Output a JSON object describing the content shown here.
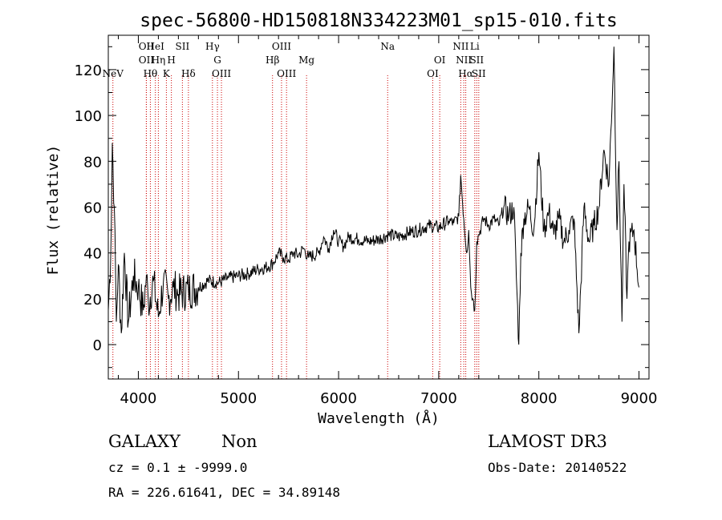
{
  "chart_data": {
    "type": "line",
    "title": "spec-56800-HD150818N334223M01_sp15-010.fits",
    "xlabel": "Wavelength (Å)",
    "ylabel": "Flux (relative)",
    "xlim": [
      3700,
      9100
    ],
    "ylim": [
      -15,
      135
    ],
    "x_ticks": [
      4000,
      5000,
      6000,
      7000,
      8000,
      9000
    ],
    "y_ticks": [
      0,
      20,
      40,
      60,
      80,
      100,
      120
    ],
    "grid": false,
    "series": [
      {
        "x": [
          3700,
          3725,
          3740,
          3760,
          3780,
          3800,
          3830,
          3860,
          3900,
          3950,
          4000,
          4050,
          4080,
          4100,
          4150,
          4200,
          4250,
          4300,
          4350,
          4400,
          4500,
          4600,
          4700,
          4800,
          4900,
          5000,
          5100,
          5200,
          5300,
          5350,
          5400,
          5450,
          5500,
          5550,
          5600,
          5650,
          5700,
          5800,
          5850,
          5900,
          5950,
          6000,
          6050,
          6100,
          6200,
          6300,
          6400,
          6500,
          6600,
          6700,
          6800,
          6900,
          7000,
          7100,
          7150,
          7200,
          7220,
          7250,
          7280,
          7300,
          7320,
          7340,
          7360,
          7380,
          7400,
          7450,
          7500,
          7550,
          7600,
          7650,
          7700,
          7750,
          7800,
          7820,
          7850,
          7900,
          7950,
          8000,
          8050,
          8100,
          8150,
          8200,
          8250,
          8300,
          8350,
          8400,
          8450,
          8500,
          8550,
          8600,
          8650,
          8700,
          8750,
          8780,
          8800,
          8830,
          8850,
          8880,
          8900,
          8950,
          9000
        ],
        "values": [
          15,
          40,
          88,
          60,
          10,
          35,
          5,
          40,
          10,
          30,
          25,
          15,
          30,
          18,
          28,
          12,
          27,
          20,
          25,
          22,
          24,
          25,
          28,
          27,
          29,
          30,
          31,
          33,
          34,
          36,
          40,
          38,
          37,
          40,
          39,
          42,
          38,
          40,
          47,
          42,
          50,
          45,
          43,
          47,
          46,
          45,
          46,
          48,
          47,
          49,
          50,
          52,
          51,
          54,
          53,
          56,
          74,
          55,
          40,
          50,
          25,
          20,
          15,
          45,
          48,
          55,
          52,
          55,
          52,
          60,
          56,
          60,
          0,
          40,
          55,
          60,
          50,
          84,
          50,
          58,
          48,
          55,
          45,
          50,
          55,
          5,
          60,
          45,
          52,
          60,
          85,
          70,
          130,
          50,
          80,
          10,
          70,
          20,
          45,
          50,
          25
        ]
      }
    ],
    "lines": [
      {
        "name": "NeV",
        "x": 3746,
        "row": 3
      },
      {
        "name": "OII",
        "x": 4080,
        "row": 1
      },
      {
        "name": "OII",
        "x": 4080,
        "row": 2
      },
      {
        "name": "Hθ",
        "x": 4120,
        "row": 3
      },
      {
        "name": "HeI",
        "x": 4170,
        "row": 1
      },
      {
        "name": "Hη",
        "x": 4200,
        "row": 2
      },
      {
        "name": "K",
        "x": 4280,
        "row": 3
      },
      {
        "name": "H",
        "x": 4330,
        "row": 2
      },
      {
        "name": "SII",
        "x": 4440,
        "row": 1
      },
      {
        "name": "Hδ",
        "x": 4500,
        "row": 3
      },
      {
        "name": "Hγ",
        "x": 4740,
        "row": 1
      },
      {
        "name": "G",
        "x": 4790,
        "row": 2
      },
      {
        "name": "OIII",
        "x": 4830,
        "row": 3
      },
      {
        "name": "Hβ",
        "x": 5340,
        "row": 2
      },
      {
        "name": "OIII",
        "x": 5430,
        "row": 1
      },
      {
        "name": "OIII",
        "x": 5480,
        "row": 3
      },
      {
        "name": "Mg",
        "x": 5680,
        "row": 2
      },
      {
        "name": "Na",
        "x": 6490,
        "row": 1
      },
      {
        "name": "OI",
        "x": 6940,
        "row": 3
      },
      {
        "name": "OI",
        "x": 7010,
        "row": 2
      },
      {
        "name": "NII",
        "x": 7220,
        "row": 1
      },
      {
        "name": "NII",
        "x": 7250,
        "row": 2
      },
      {
        "name": "Hα",
        "x": 7270,
        "row": 3
      },
      {
        "name": "Li",
        "x": 7360,
        "row": 1
      },
      {
        "name": "SII",
        "x": 7380,
        "row": 2
      },
      {
        "name": "SII",
        "x": 7400,
        "row": 3
      }
    ]
  },
  "info": {
    "class": "GALAXY",
    "subclass": "Non",
    "survey": "LAMOST DR3",
    "cz": "cz = 0.1 ± -9999.0",
    "obs_date": "Obs-Date: 20140522",
    "radec": "RA = 226.61641, DEC =  34.89148"
  },
  "colors": {
    "axis": "#000000",
    "spectrum": "#000000",
    "line_marker": "#cc0000"
  }
}
